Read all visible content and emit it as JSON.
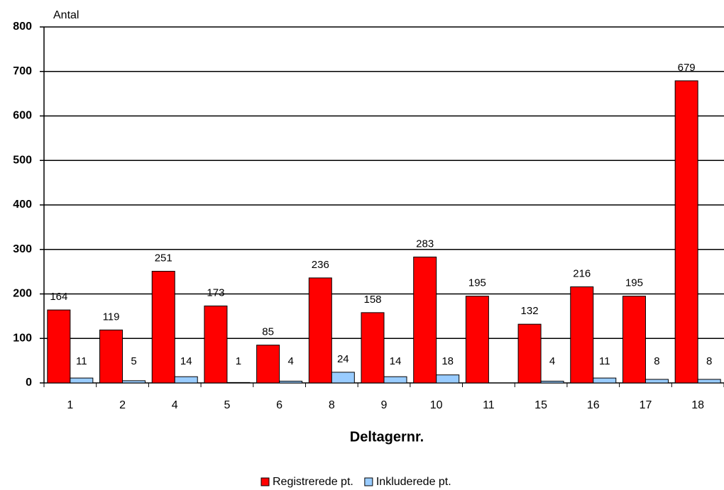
{
  "chart_data": {
    "type": "bar",
    "y_axis_label": "Antal",
    "x_axis_label": "Deltagernr.",
    "categories": [
      "1",
      "2",
      "4",
      "5",
      "6",
      "8",
      "9",
      "10",
      "11",
      "15",
      "16",
      "17",
      "18"
    ],
    "series": [
      {
        "name": "Registrerede pt.",
        "color": "#ff0000",
        "values": [
          164,
          119,
          251,
          173,
          85,
          236,
          158,
          283,
          195,
          132,
          216,
          195,
          679
        ]
      },
      {
        "name": "Inkluderede pt.",
        "color": "#99ccff",
        "values": [
          11,
          5,
          14,
          1,
          4,
          24,
          14,
          18,
          null,
          4,
          11,
          8,
          8
        ]
      }
    ],
    "ylim": [
      0,
      800
    ],
    "yticks": [
      0,
      100,
      200,
      300,
      400,
      500,
      600,
      700,
      800
    ],
    "grid": true
  }
}
